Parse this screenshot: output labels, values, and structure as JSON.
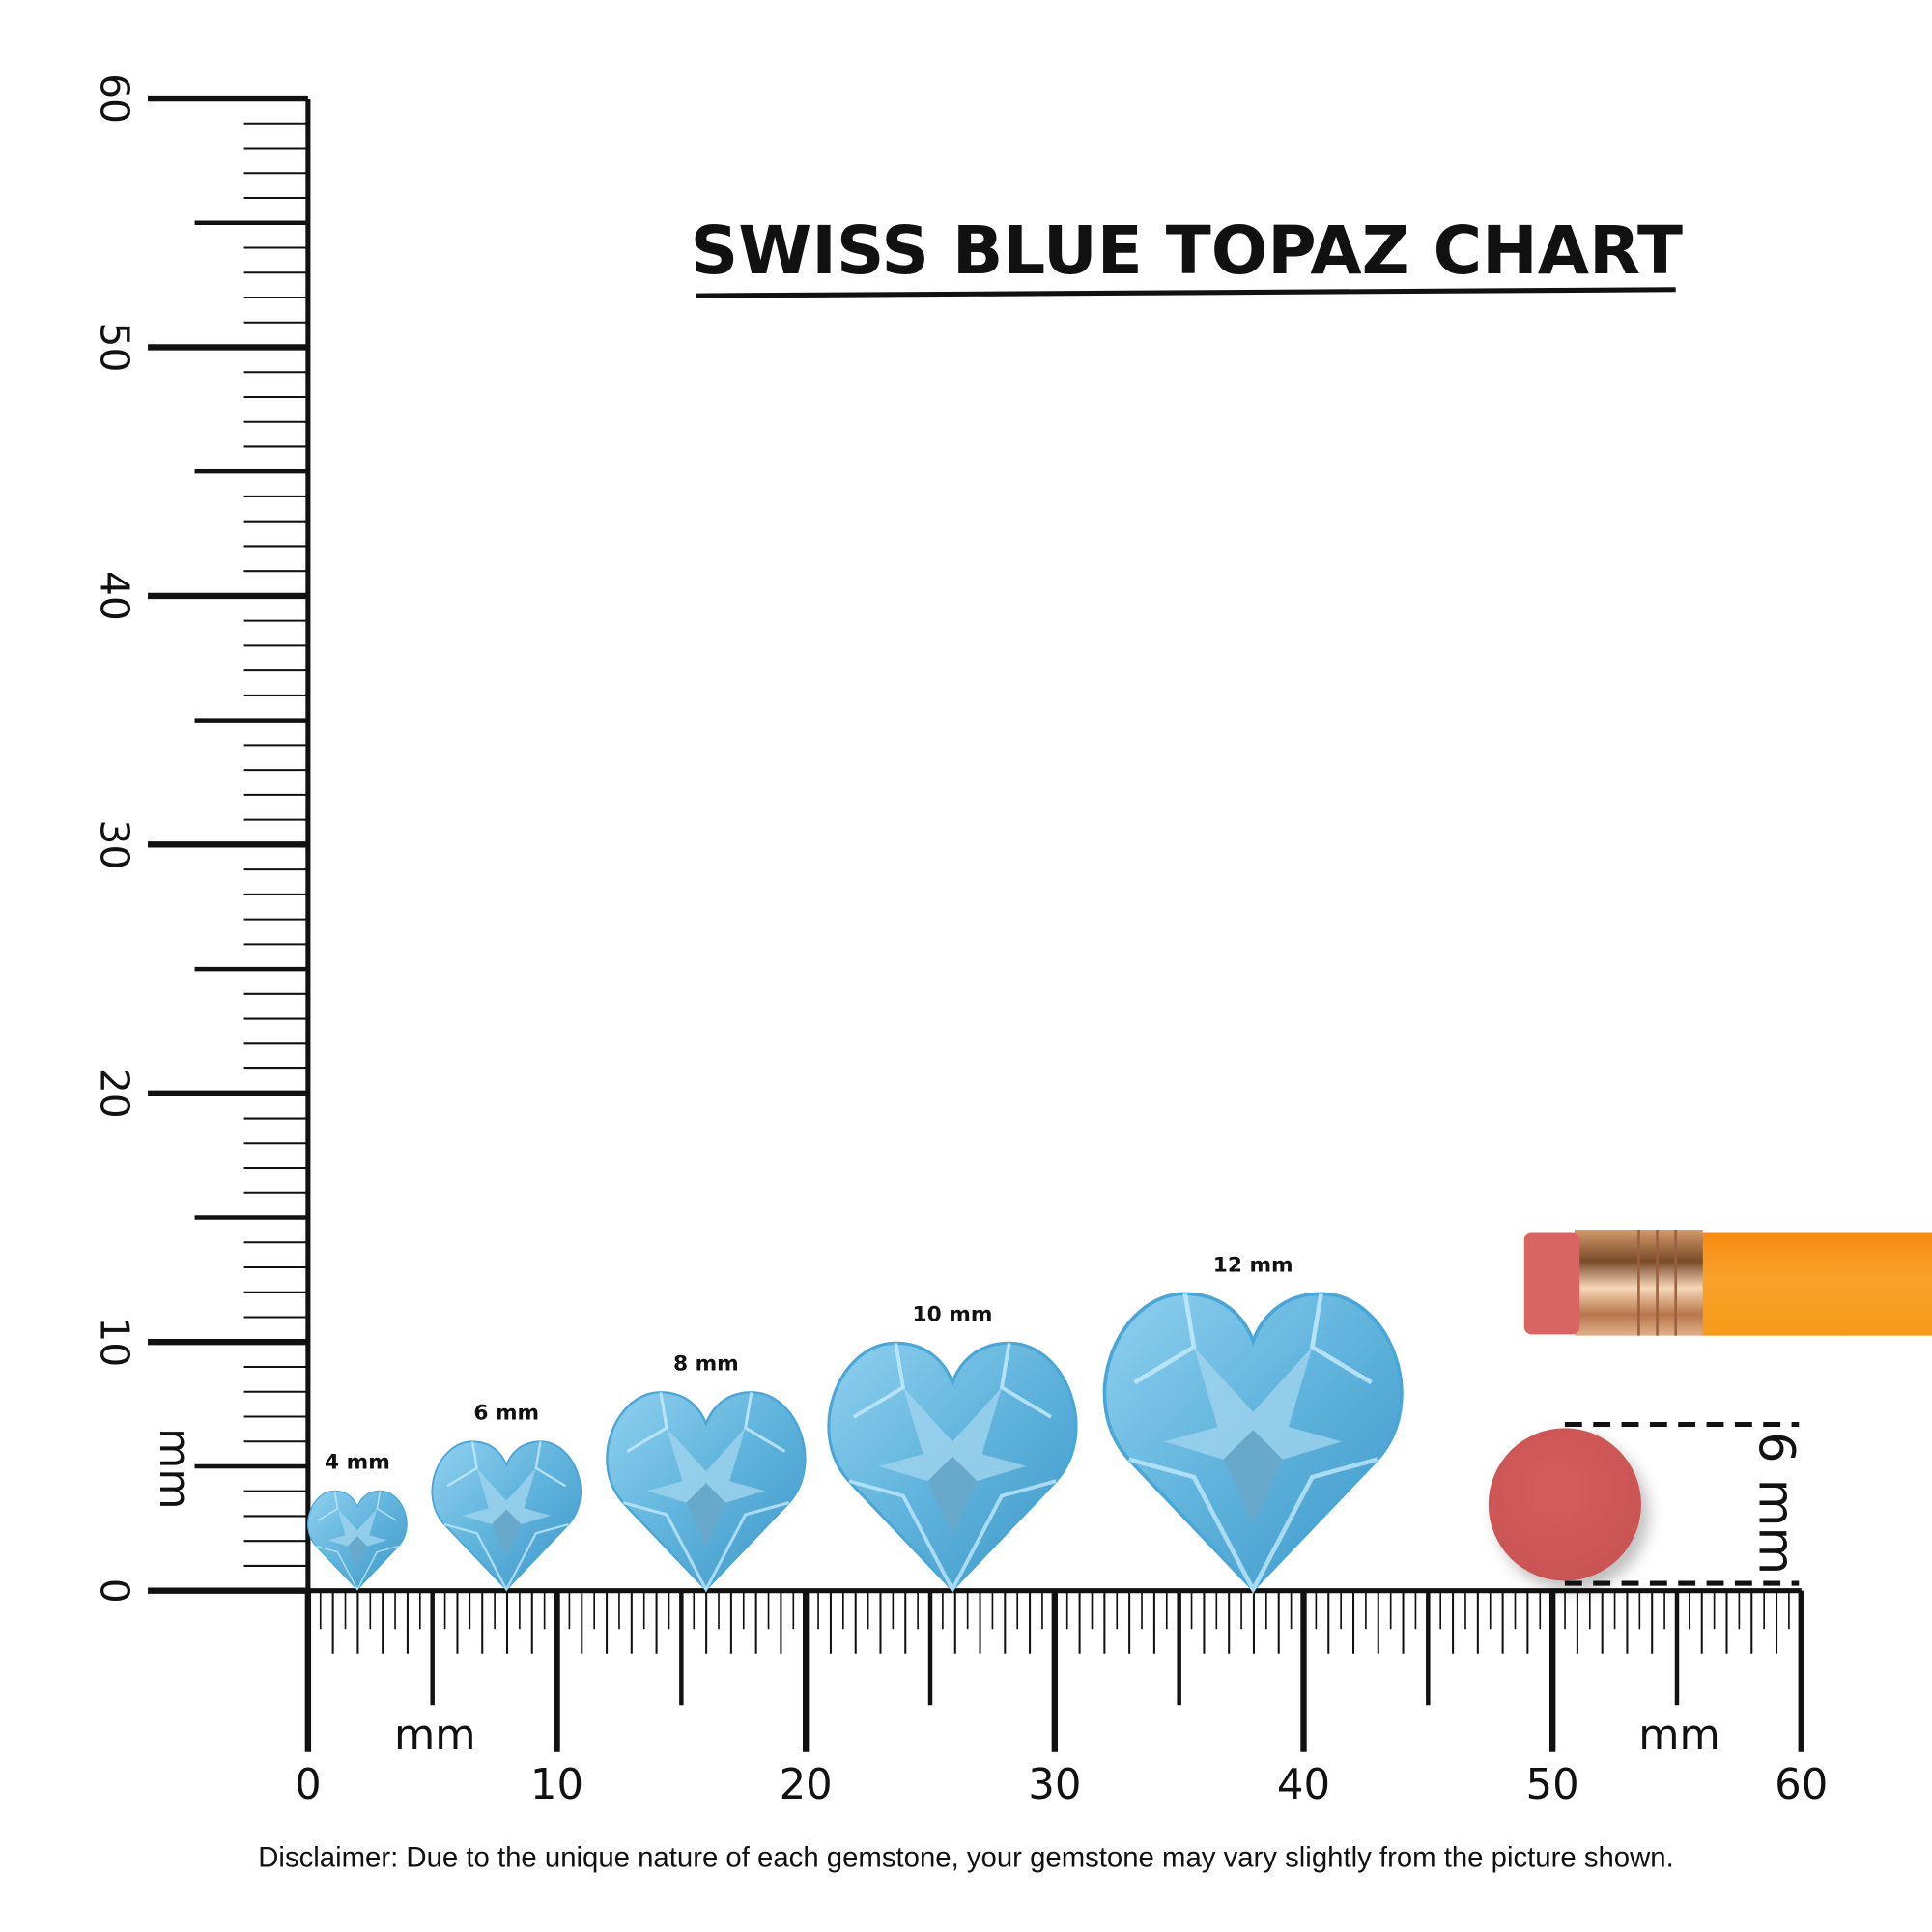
{
  "chart_data": {
    "type": "size-chart",
    "title": "SWISS BLUE TOPAZ CHART",
    "unit_label": "mm",
    "vertical_ruler": {
      "range": [
        0,
        60
      ],
      "tick_labels": [
        "0",
        "10",
        "20",
        "30",
        "40",
        "50",
        "60"
      ]
    },
    "horizontal_ruler": {
      "range": [
        0,
        60
      ],
      "tick_labels": [
        "0",
        "10",
        "20",
        "30",
        "40",
        "50",
        "60"
      ]
    },
    "stones": [
      {
        "label": "4 mm",
        "size_mm": 4
      },
      {
        "label": "6 mm",
        "size_mm": 6
      },
      {
        "label": "8 mm",
        "size_mm": 8
      },
      {
        "label": "10 mm",
        "size_mm": 10
      },
      {
        "label": "12 mm",
        "size_mm": 12
      }
    ],
    "reference": {
      "label": "6 mm",
      "object": "pencil eraser ball",
      "size_mm": 6
    },
    "disclaimer": "Disclaimer: Due to the unique nature of each gemstone, your gemstone may vary slightly from the picture shown.",
    "colors": {
      "gem": "#5fb3dc",
      "gem_light": "#9fd6f0",
      "eraser": "#d25a5a",
      "pencil": "#f5901a",
      "ferrule": "#c98a5a"
    }
  }
}
